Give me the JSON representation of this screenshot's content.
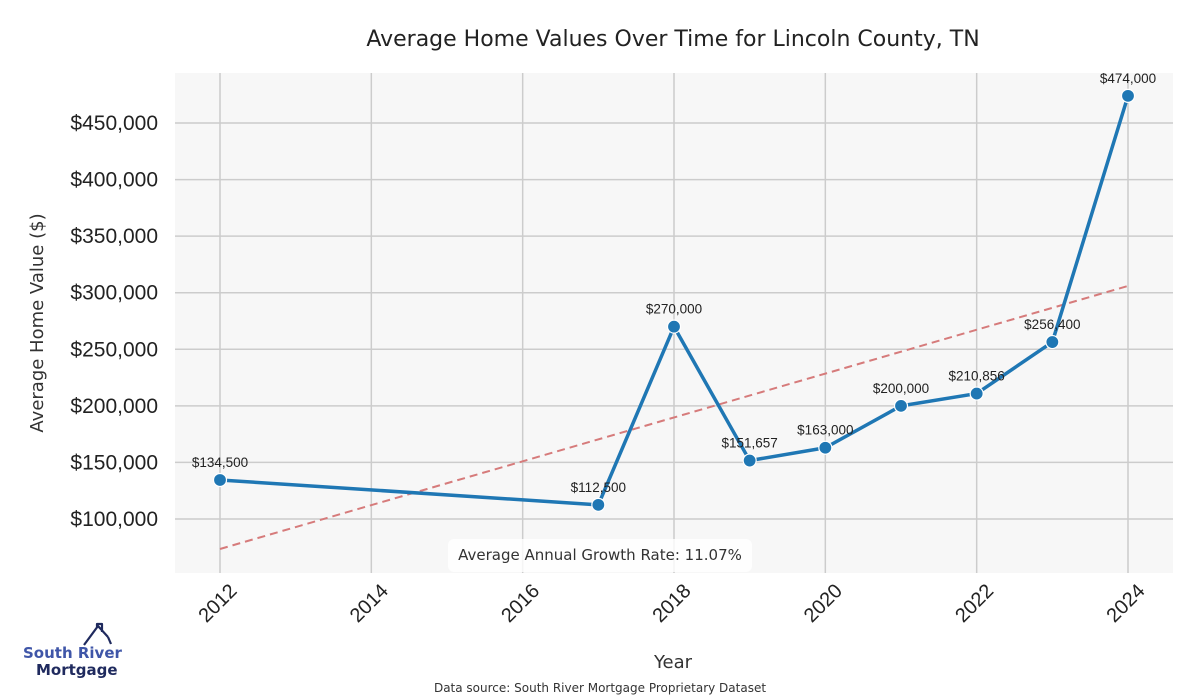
{
  "chart_data": {
    "type": "line",
    "title": "Average Home Values Over Time for Lincoln County, TN",
    "xlabel": "Year",
    "ylabel": "Average Home Value ($)",
    "xlim": [
      2011.4,
      2024.6
    ],
    "ylim": [
      53000,
      488000
    ],
    "grid": true,
    "x_ticks": [
      2012,
      2014,
      2016,
      2018,
      2020,
      2022,
      2024
    ],
    "x_tick_labels": [
      "2012",
      "2014",
      "2016",
      "2018",
      "2020",
      "2022",
      "2024"
    ],
    "y_ticks": [
      100000,
      150000,
      200000,
      250000,
      300000,
      350000,
      400000,
      450000
    ],
    "y_tick_labels": [
      "$100,000",
      "$150,000",
      "$200,000",
      "$250,000",
      "$300,000",
      "$350,000",
      "$400,000",
      "$450,000"
    ],
    "series": [
      {
        "name": "Average Home Value",
        "color": "#1f77b4",
        "x": [
          2012,
          2017,
          2018,
          2019,
          2020,
          2021,
          2022,
          2023,
          2024
        ],
        "values": [
          134500,
          112500,
          270000,
          151657,
          163000,
          200000,
          210856,
          256400,
          474000
        ],
        "labels": [
          "$134,500",
          "$112,500",
          "$270,000",
          "$151,657",
          "$163,000",
          "$200,000",
          "$210,856",
          "$256,400",
          "$474,000"
        ]
      }
    ],
    "trend_line": {
      "color": "#d67b7b",
      "style": "dashed",
      "x": [
        2012,
        2024
      ],
      "values": [
        73500,
        306000
      ]
    },
    "annotation": "Average Annual Growth Rate: 11.07%",
    "source": "Data source: South River Mortgage Proprietary Dataset"
  },
  "logo": {
    "line1": "South River",
    "line2": "Mortgage"
  },
  "colors": {
    "plot_bg": "#f7f7f7",
    "grid": "#cccccc",
    "line": "#1f77b4",
    "trend": "#d67b7b"
  }
}
